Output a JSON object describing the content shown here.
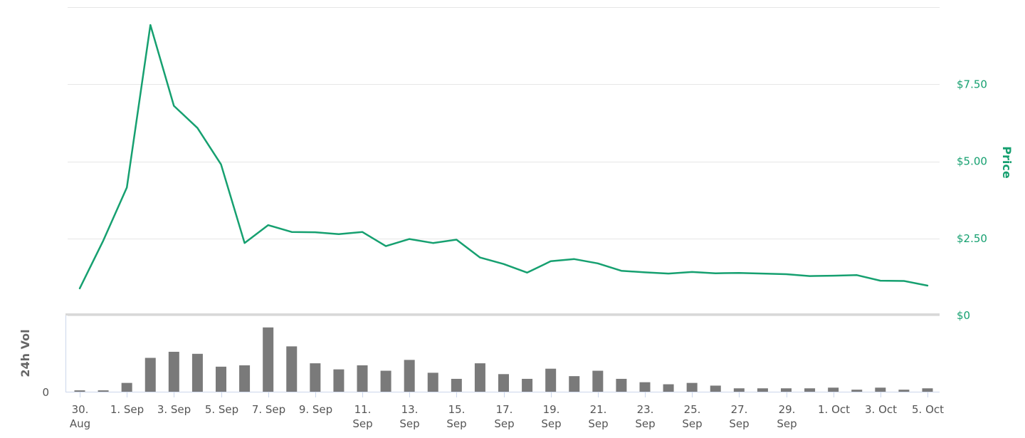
{
  "chart_data": {
    "type": "line",
    "title": "",
    "colors": {
      "price_line": "#16a070",
      "volume_bar": "#7a7a7a",
      "grid": "#e6e6e6",
      "axis": "#ccd6eb"
    },
    "x": [
      "30 Aug",
      "31 Aug",
      "1 Sep",
      "2 Sep",
      "3 Sep",
      "4 Sep",
      "5 Sep",
      "6 Sep",
      "7 Sep",
      "8 Sep",
      "9 Sep",
      "10 Sep",
      "11 Sep",
      "12 Sep",
      "13 Sep",
      "14 Sep",
      "15 Sep",
      "16 Sep",
      "17 Sep",
      "18 Sep",
      "19 Sep",
      "20 Sep",
      "21 Sep",
      "22 Sep",
      "23 Sep",
      "24 Sep",
      "25 Sep",
      "26 Sep",
      "27 Sep",
      "28 Sep",
      "29 Sep",
      "30 Sep",
      "1 Oct",
      "2 Oct",
      "3 Oct",
      "4 Oct",
      "5 Oct"
    ],
    "x_tick_labels": [
      {
        "index": 0,
        "line1": "30.",
        "line2": "Aug"
      },
      {
        "index": 2,
        "line1": "1. Sep",
        "line2": ""
      },
      {
        "index": 4,
        "line1": "3. Sep",
        "line2": ""
      },
      {
        "index": 6,
        "line1": "5. Sep",
        "line2": ""
      },
      {
        "index": 8,
        "line1": "7. Sep",
        "line2": ""
      },
      {
        "index": 10,
        "line1": "9. Sep",
        "line2": ""
      },
      {
        "index": 12,
        "line1": "11.",
        "line2": "Sep"
      },
      {
        "index": 14,
        "line1": "13.",
        "line2": "Sep"
      },
      {
        "index": 16,
        "line1": "15.",
        "line2": "Sep"
      },
      {
        "index": 18,
        "line1": "17.",
        "line2": "Sep"
      },
      {
        "index": 20,
        "line1": "19.",
        "line2": "Sep"
      },
      {
        "index": 22,
        "line1": "21.",
        "line2": "Sep"
      },
      {
        "index": 24,
        "line1": "23.",
        "line2": "Sep"
      },
      {
        "index": 26,
        "line1": "25.",
        "line2": "Sep"
      },
      {
        "index": 28,
        "line1": "27.",
        "line2": "Sep"
      },
      {
        "index": 30,
        "line1": "29.",
        "line2": "Sep"
      },
      {
        "index": 32,
        "line1": "1. Oct",
        "line2": ""
      },
      {
        "index": 34,
        "line1": "3. Oct",
        "line2": ""
      },
      {
        "index": 36,
        "line1": "5. Oct",
        "line2": ""
      }
    ],
    "price": {
      "axis_title": "Price",
      "ylim": [
        0,
        10
      ],
      "ticks": [
        {
          "value": 0,
          "label": "$0"
        },
        {
          "value": 2.5,
          "label": "$2.50"
        },
        {
          "value": 5,
          "label": "$5.00"
        },
        {
          "value": 7.5,
          "label": "$7.50"
        }
      ],
      "values": [
        0.88,
        2.43,
        4.15,
        9.42,
        6.8,
        6.08,
        4.9,
        2.35,
        2.93,
        2.71,
        2.7,
        2.64,
        2.71,
        2.25,
        2.48,
        2.35,
        2.46,
        1.88,
        1.67,
        1.39,
        1.76,
        1.83,
        1.69,
        1.45,
        1.4,
        1.36,
        1.41,
        1.37,
        1.38,
        1.36,
        1.34,
        1.28,
        1.29,
        1.31,
        1.13,
        1.12,
        0.97
      ]
    },
    "volume": {
      "axis_title": "24h Vol",
      "tick_zero_label": "0",
      "ylim": [
        0,
        100
      ],
      "values": [
        2,
        2,
        13,
        50,
        59,
        56,
        37,
        39,
        95,
        67,
        42,
        33,
        39,
        31,
        47,
        28,
        19,
        42,
        26,
        19,
        34,
        23,
        31,
        19,
        14,
        11,
        13,
        9,
        5,
        5,
        5,
        5,
        6,
        3,
        6,
        3,
        5
      ]
    }
  }
}
